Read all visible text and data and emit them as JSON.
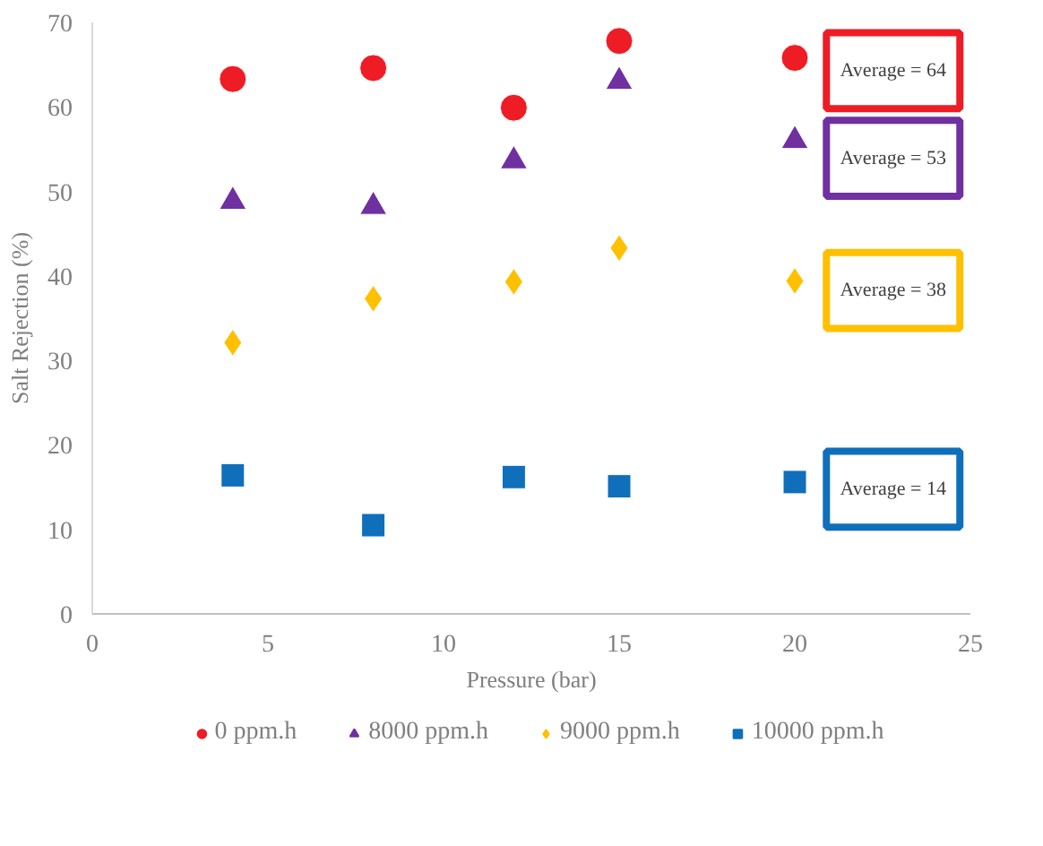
{
  "chart_data": {
    "type": "scatter",
    "xlabel": "Pressure (bar)",
    "ylabel": "Salt Rejection (%)",
    "xlim": [
      0,
      25
    ],
    "xticks": [
      0,
      5,
      10,
      15,
      20,
      25
    ],
    "ylim": [
      0,
      70
    ],
    "yticks": [
      0,
      10,
      20,
      30,
      40,
      50,
      60,
      70
    ],
    "grid": false,
    "legend": "bottom",
    "series": [
      {
        "name": "0 ppm.h",
        "color": "#ee1c25",
        "marker": "circle",
        "x": [
          4,
          8,
          12,
          15,
          20
        ],
        "values": [
          63.3,
          64.6,
          59.9,
          67.8,
          65.8
        ]
      },
      {
        "name": "8000 ppm.h",
        "color": "#7030a0",
        "marker": "triangle",
        "x": [
          4,
          8,
          12,
          15,
          20
        ],
        "values": [
          48.8,
          48.2,
          53.6,
          63.0,
          56.0
        ]
      },
      {
        "name": "9000 ppm.h",
        "color": "#ffc000",
        "marker": "diamond",
        "x": [
          4,
          8,
          12,
          15,
          20
        ],
        "values": [
          32.1,
          37.3,
          39.3,
          43.3,
          39.4
        ]
      },
      {
        "name": "10000 ppm.h",
        "color": "#0f6fba",
        "marker": "square",
        "x": [
          4,
          8,
          12,
          15,
          20
        ],
        "values": [
          16.4,
          10.5,
          16.2,
          15.1,
          15.6
        ]
      }
    ],
    "annotations": [
      "Average = 64",
      "Average = 53",
      "Average = 38",
      "Average = 14"
    ]
  }
}
